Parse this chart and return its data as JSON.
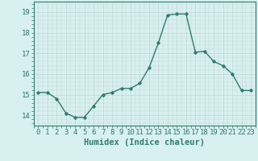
{
  "x": [
    0,
    1,
    2,
    3,
    4,
    5,
    6,
    7,
    8,
    9,
    10,
    11,
    12,
    13,
    14,
    15,
    16,
    17,
    18,
    19,
    20,
    21,
    22,
    23
  ],
  "y": [
    15.1,
    15.1,
    14.8,
    14.1,
    13.9,
    13.9,
    14.45,
    15.0,
    15.1,
    15.3,
    15.3,
    15.55,
    16.3,
    17.5,
    18.85,
    18.9,
    18.9,
    17.05,
    17.1,
    16.6,
    16.4,
    16.0,
    15.2,
    15.2
  ],
  "line_color": "#2e7d6e",
  "marker": "D",
  "marker_size": 1.8,
  "bg_color": "#d8f0ee",
  "grid_color": "#c0d8d4",
  "xlabel": "Humidex (Indice chaleur)",
  "xlabel_fontsize": 7.5,
  "xlabel_color": "#2e7d6e",
  "yticks": [
    14,
    15,
    16,
    17,
    18,
    19
  ],
  "xticks": [
    0,
    1,
    2,
    3,
    4,
    5,
    6,
    7,
    8,
    9,
    10,
    11,
    12,
    13,
    14,
    15,
    16,
    17,
    18,
    19,
    20,
    21,
    22,
    23
  ],
  "ylim": [
    13.5,
    19.5
  ],
  "xlim": [
    -0.5,
    23.5
  ],
  "tick_color": "#2e7d6e",
  "tick_fontsize": 6.5,
  "linewidth": 1.0
}
